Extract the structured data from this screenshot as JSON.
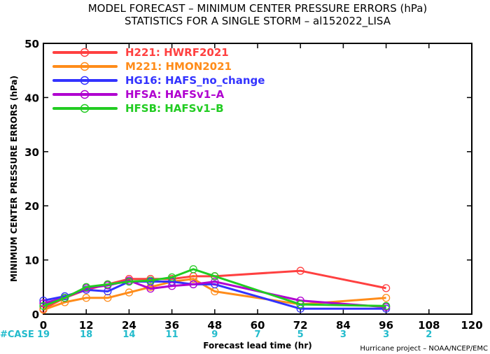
{
  "chart_data": {
    "type": "line",
    "title": "MODEL FORECAST – MINIMUM CENTER PRESSURE ERRORS (hPa)",
    "subtitle": "STATISTICS FOR A SINGLE STORM – al152022_LISA",
    "xlabel": "Forecast lead time (hr)",
    "ylabel": "MINIMUM CENTER PRESSURE ERRORS (hPa)",
    "xlim": [
      0,
      120
    ],
    "ylim": [
      0,
      50
    ],
    "xticks": [
      0,
      12,
      24,
      36,
      48,
      60,
      72,
      84,
      96,
      108,
      120
    ],
    "yticks": [
      0,
      10,
      20,
      30,
      40,
      50
    ],
    "grid": false,
    "legend_position": "top-left",
    "series": [
      {
        "name": "H221: HWRF2021",
        "color": "#ff4040",
        "x": [
          0,
          6,
          12,
          18,
          24,
          30,
          36,
          42,
          48,
          72,
          96
        ],
        "y": [
          1.0,
          3.0,
          4.5,
          5.5,
          6.5,
          6.5,
          6.5,
          7.0,
          7.0,
          8.0,
          4.8
        ]
      },
      {
        "name": "M221: HMON2021",
        "color": "#ff8c1a",
        "x": [
          0,
          6,
          12,
          18,
          24,
          30,
          36,
          42,
          48,
          72,
          96
        ],
        "y": [
          0.8,
          2.2,
          3.0,
          3.0,
          4.0,
          5.0,
          6.0,
          6.5,
          4.2,
          1.8,
          3.0
        ]
      },
      {
        "name": "HG16: HAFS_no_change",
        "color": "#3333ff",
        "x": [
          0,
          6,
          12,
          18,
          24,
          30,
          36,
          42,
          48,
          72,
          96
        ],
        "y": [
          2.5,
          3.3,
          4.5,
          4.2,
          6.0,
          6.0,
          6.0,
          5.5,
          5.5,
          1.0,
          1.0
        ]
      },
      {
        "name": "HFSA: HAFSv1–A",
        "color": "#b000d0",
        "x": [
          0,
          6,
          12,
          18,
          24,
          30,
          36,
          42,
          48,
          72,
          96
        ],
        "y": [
          2.0,
          3.0,
          4.8,
          5.3,
          6.2,
          4.7,
          5.2,
          5.5,
          6.0,
          2.5,
          1.3
        ]
      },
      {
        "name": "HFSB: HAFSv1–B",
        "color": "#22cc22",
        "x": [
          0,
          6,
          12,
          18,
          24,
          30,
          36,
          42,
          48,
          72,
          96
        ],
        "y": [
          1.5,
          3.0,
          5.0,
          5.5,
          6.0,
          6.2,
          6.8,
          8.3,
          7.0,
          1.8,
          1.5
        ]
      }
    ],
    "case_label": "#CASE",
    "case_color": "#22bbcc",
    "cases": [
      {
        "x": 0,
        "n": "19"
      },
      {
        "x": 12,
        "n": "18"
      },
      {
        "x": 24,
        "n": "14"
      },
      {
        "x": 36,
        "n": "11"
      },
      {
        "x": 48,
        "n": "9"
      },
      {
        "x": 60,
        "n": "7"
      },
      {
        "x": 72,
        "n": "5"
      },
      {
        "x": 84,
        "n": "3"
      },
      {
        "x": 96,
        "n": "3"
      },
      {
        "x": 108,
        "n": "2"
      }
    ]
  },
  "credit": "Hurricane project – NOAA/NCEP/EMC"
}
